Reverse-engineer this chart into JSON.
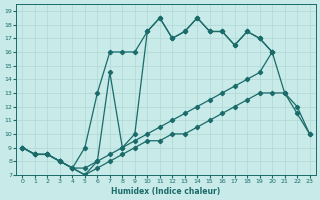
{
  "xlabel": "Humidex (Indice chaleur)",
  "xlim": [
    -0.5,
    23.5
  ],
  "ylim": [
    7,
    19.5
  ],
  "xticks": [
    0,
    1,
    2,
    3,
    4,
    5,
    6,
    7,
    8,
    9,
    10,
    11,
    12,
    13,
    14,
    15,
    16,
    17,
    18,
    19,
    20,
    21,
    22,
    23
  ],
  "yticks": [
    7,
    8,
    9,
    10,
    11,
    12,
    13,
    14,
    15,
    16,
    17,
    18,
    19
  ],
  "bg_color": "#c8eae8",
  "line_color": "#1a6b6a",
  "grid_color": "#b0d8d5",
  "line1_x": [
    0,
    1,
    2,
    3,
    4,
    5,
    6,
    7,
    8,
    9,
    10,
    11,
    12,
    13,
    14,
    15,
    16,
    17,
    18,
    19,
    20,
    21,
    22,
    23
  ],
  "line1_y": [
    9,
    8.5,
    8.5,
    8,
    7.5,
    7,
    7.5,
    8,
    8.5,
    9,
    9.5,
    9.5,
    10,
    10,
    10.5,
    11,
    11.5,
    12,
    12.5,
    13,
    13,
    13,
    11.5,
    10
  ],
  "line2_x": [
    0,
    1,
    2,
    3,
    4,
    5,
    6,
    7,
    8,
    9,
    10,
    11,
    12,
    13,
    14,
    15,
    16,
    17,
    18,
    19,
    20,
    21,
    22,
    23
  ],
  "line2_y": [
    9,
    8.5,
    8.5,
    8,
    7.5,
    7.5,
    8,
    8.5,
    9,
    9.5,
    10,
    10.5,
    11,
    11.5,
    12,
    12.5,
    13,
    13.5,
    14,
    14.5,
    16,
    13,
    12,
    10
  ],
  "line3_x": [
    0,
    1,
    2,
    3,
    4,
    5,
    6,
    7,
    8,
    9,
    10,
    11,
    12,
    13,
    14,
    15,
    16,
    17,
    18,
    19,
    20
  ],
  "line3_y": [
    9,
    8.5,
    8.5,
    8,
    7.5,
    9,
    13,
    16,
    16,
    16,
    17.5,
    18.5,
    17,
    17.5,
    18.5,
    17.5,
    17.5,
    16.5,
    17.5,
    17,
    16
  ],
  "line4_x": [
    0,
    1,
    2,
    3,
    4,
    5,
    6,
    7,
    8,
    9,
    10,
    11,
    12,
    13,
    14,
    15,
    16,
    17,
    18,
    19,
    20
  ],
  "line4_y": [
    9,
    8.5,
    8.5,
    8,
    7.5,
    7,
    8,
    14.5,
    9,
    10,
    17.5,
    18.5,
    17,
    17.5,
    18.5,
    17.5,
    17.5,
    16.5,
    17.5,
    17,
    16
  ]
}
